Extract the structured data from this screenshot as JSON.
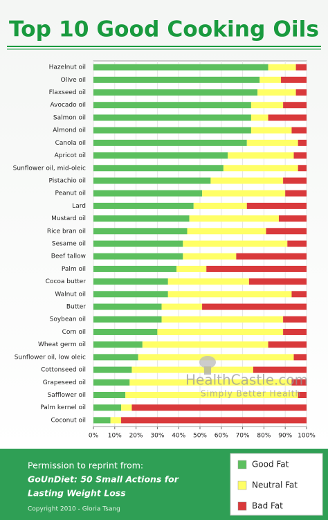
{
  "chart_data": {
    "type": "stacked-bar-horizontal",
    "title": "Top 10 Good Cooking Oils",
    "categories": [
      "Hazelnut oil",
      "Olive oil",
      "Flaxseed oil",
      "Avocado oil",
      "Salmon oil",
      "Almond oil",
      "Canola oil",
      "Apricot oil",
      "Sunflower oil, mid-oleic",
      "Pistachio oil",
      "Peanut oil",
      "Lard",
      "Mustard oil",
      "Rice bran oil",
      "Sesame oil",
      "Beef tallow",
      "Palm oil",
      "Cocoa butter",
      "Walnut oil",
      "Butter",
      "Soybean oil",
      "Corn oil",
      "Wheat germ oil",
      "Sunflower oil, low oleic",
      "Cottonseed oil",
      "Grapeseed oil",
      "Safflower oil",
      "Palm kernel oil",
      "Coconut oil"
    ],
    "series": [
      {
        "name": "Good Fat",
        "color": "#5cbf5e",
        "values": [
          82,
          78,
          77,
          74,
          74,
          74,
          72,
          63,
          61,
          55,
          51,
          47,
          45,
          44,
          42,
          42,
          39,
          35,
          35,
          32,
          32,
          30,
          23,
          21,
          18,
          17,
          15,
          13,
          8
        ]
      },
      {
        "name": "Neutral Fat",
        "color": "#ffff66",
        "values": [
          13,
          10,
          18,
          15,
          8,
          19,
          24,
          31,
          35,
          34,
          39,
          25,
          42,
          37,
          49,
          25,
          14,
          38,
          58,
          19,
          57,
          59,
          59,
          73,
          57,
          76,
          81,
          5,
          5
        ]
      },
      {
        "name": "Bad Fat",
        "color": "#d9393b",
        "values": [
          5,
          12,
          5,
          11,
          18,
          7,
          4,
          6,
          4,
          11,
          10,
          28,
          13,
          19,
          9,
          33,
          47,
          27,
          7,
          49,
          11,
          11,
          18,
          6,
          25,
          7,
          4,
          82,
          87
        ]
      }
    ],
    "xlim": [
      0,
      100
    ],
    "xticks": [
      {
        "value": 0,
        "label": "0%"
      },
      {
        "value": 10,
        "label": "10%"
      },
      {
        "value": 20,
        "label": "20%"
      },
      {
        "value": 30,
        "label": "30%"
      },
      {
        "value": 40,
        "label": "40%"
      },
      {
        "value": 50,
        "label": "50%"
      },
      {
        "value": 60,
        "label": "60%"
      },
      {
        "value": 70,
        "label": "70%"
      },
      {
        "value": 80,
        "label": "80%"
      },
      {
        "value": 90,
        "label": "90%"
      },
      {
        "value": 100,
        "label": "100%"
      }
    ],
    "grid": true
  },
  "watermark": {
    "brand": "HealthCastle.com",
    "tagline": "Simply Better Health"
  },
  "footer": {
    "intro": "Permission to reprint from:",
    "book_line1": "GoUnDiet: 50 Small Actions for",
    "book_line2": "Lasting Weight Loss",
    "copyright": "Copyright 2010 - Gloria Tsang"
  }
}
